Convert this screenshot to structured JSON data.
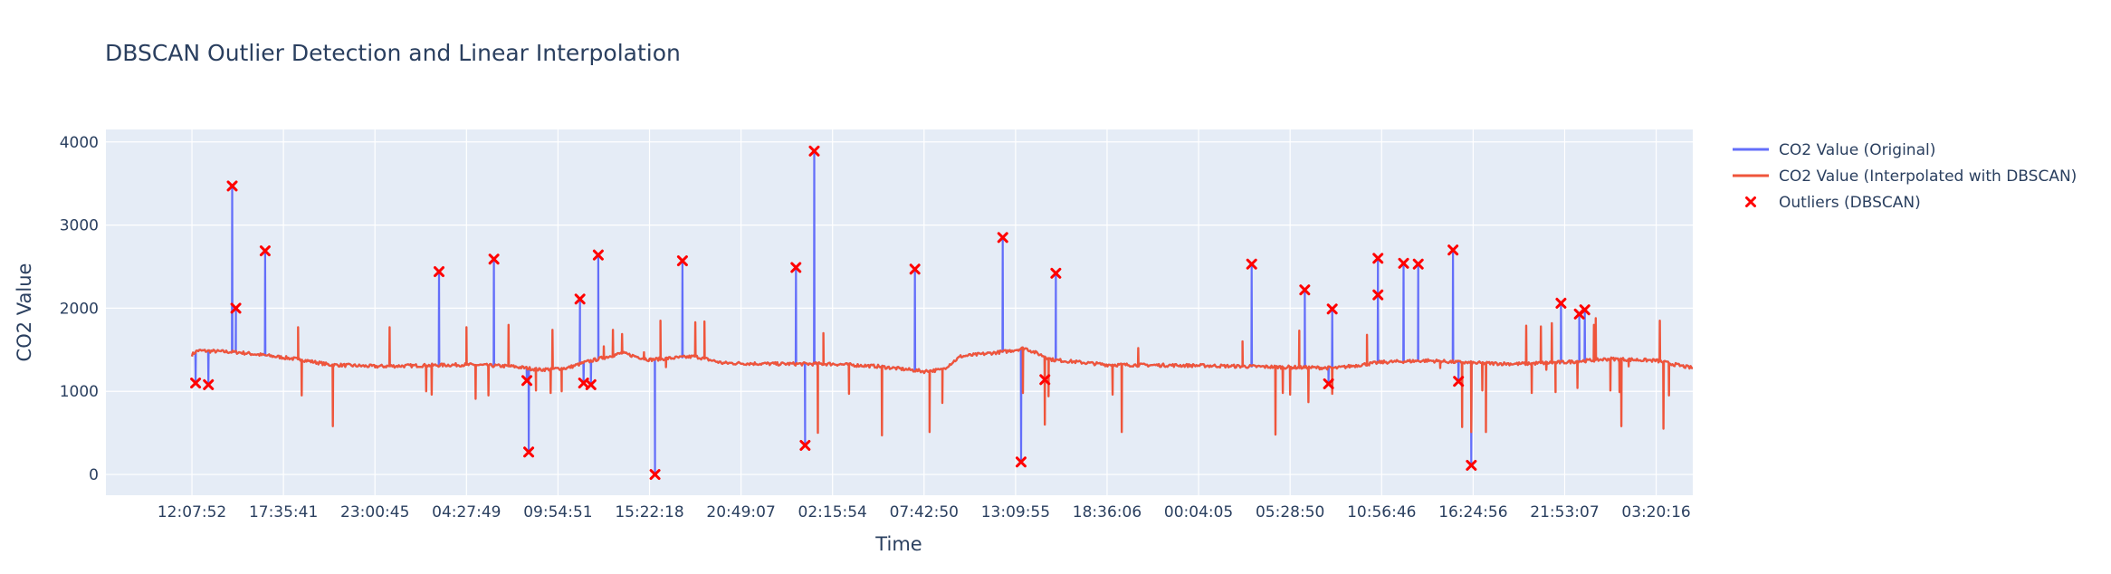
{
  "chart_data": {
    "type": "line",
    "title": "DBSCAN Outlier Detection and Linear Interpolation",
    "xlabel": "Time",
    "ylabel": "CO2 Value",
    "ylim": [
      -250,
      4150
    ],
    "yticks": [
      0,
      1000,
      2000,
      3000,
      4000
    ],
    "xlim": [
      -0.47,
      8.2
    ],
    "xticks": [
      {
        "pos": 0,
        "label": "12:07:52"
      },
      {
        "pos": 0.5,
        "label": "17:35:41"
      },
      {
        "pos": 1,
        "label": "23:00:45"
      },
      {
        "pos": 1.5,
        "label": "04:27:49"
      },
      {
        "pos": 2,
        "label": "09:54:51"
      },
      {
        "pos": 2.5,
        "label": "15:22:18"
      },
      {
        "pos": 3,
        "label": "20:49:07"
      },
      {
        "pos": 3.5,
        "label": "02:15:54"
      },
      {
        "pos": 4,
        "label": "07:42:50"
      },
      {
        "pos": 4.5,
        "label": "13:09:55"
      },
      {
        "pos": 5,
        "label": "18:36:06"
      },
      {
        "pos": 5.5,
        "label": "00:04:05"
      },
      {
        "pos": 6,
        "label": "05:28:50"
      },
      {
        "pos": 6.5,
        "label": "10:56:46"
      },
      {
        "pos": 7,
        "label": "16:24:56"
      },
      {
        "pos": 7.5,
        "label": "21:53:07"
      },
      {
        "pos": 8,
        "label": "03:20:16"
      }
    ],
    "grid": true,
    "legend_position": "right",
    "colors": {
      "original": "#636efa",
      "interpolated": "#ef553b",
      "outliers": "#ff0000",
      "plot_bg": "#e5ecf6",
      "grid": "#ffffff"
    },
    "series": [
      {
        "name": "CO2 Value (Original)",
        "baseline": [
          [
            0,
            1440
          ],
          [
            0.03,
            1490
          ],
          [
            0.25,
            1470
          ],
          [
            0.45,
            1420
          ],
          [
            0.6,
            1380
          ],
          [
            0.75,
            1320
          ],
          [
            1.0,
            1300
          ],
          [
            1.25,
            1310
          ],
          [
            1.5,
            1320
          ],
          [
            1.75,
            1300
          ],
          [
            1.9,
            1260
          ],
          [
            2.05,
            1280
          ],
          [
            2.15,
            1350
          ],
          [
            2.35,
            1460
          ],
          [
            2.5,
            1380
          ],
          [
            2.75,
            1420
          ],
          [
            2.9,
            1340
          ],
          [
            3.2,
            1330
          ],
          [
            3.5,
            1330
          ],
          [
            3.75,
            1300
          ],
          [
            4.0,
            1240
          ],
          [
            4.1,
            1260
          ],
          [
            4.2,
            1420
          ],
          [
            4.45,
            1480
          ],
          [
            4.55,
            1520
          ],
          [
            4.7,
            1380
          ],
          [
            5.0,
            1320
          ],
          [
            5.5,
            1310
          ],
          [
            5.75,
            1300
          ],
          [
            6.0,
            1290
          ],
          [
            6.25,
            1280
          ],
          [
            6.5,
            1350
          ],
          [
            6.75,
            1370
          ],
          [
            7.0,
            1340
          ],
          [
            7.25,
            1330
          ],
          [
            7.5,
            1350
          ],
          [
            7.75,
            1390
          ],
          [
            8.0,
            1370
          ],
          [
            8.15,
            1300
          ],
          [
            8.2,
            1280
          ]
        ],
        "spikes": [
          [
            0.02,
            1100
          ],
          [
            0.09,
            1080
          ],
          [
            0.22,
            3470
          ],
          [
            0.24,
            2000
          ],
          [
            0.4,
            2690
          ],
          [
            1.35,
            2440
          ],
          [
            1.65,
            2590
          ],
          [
            1.84,
            270
          ],
          [
            1.83,
            1130
          ],
          [
            2.12,
            2110
          ],
          [
            2.14,
            1100
          ],
          [
            2.18,
            1080
          ],
          [
            2.22,
            2640
          ],
          [
            2.53,
            0
          ],
          [
            2.68,
            2570
          ],
          [
            3.3,
            2490
          ],
          [
            3.35,
            350
          ],
          [
            3.4,
            3890
          ],
          [
            3.95,
            2470
          ],
          [
            4.43,
            2850
          ],
          [
            4.53,
            150
          ],
          [
            4.66,
            1140
          ],
          [
            4.72,
            2420
          ],
          [
            5.79,
            2530
          ],
          [
            6.08,
            2220
          ],
          [
            6.21,
            1090
          ],
          [
            6.23,
            1990
          ],
          [
            6.48,
            2600
          ],
          [
            6.48,
            2160
          ],
          [
            6.62,
            2540
          ],
          [
            6.7,
            2530
          ],
          [
            6.89,
            2700
          ],
          [
            6.92,
            1120
          ],
          [
            6.99,
            110
          ],
          [
            7.48,
            2060
          ],
          [
            7.58,
            1930
          ],
          [
            7.61,
            1980
          ]
        ]
      },
      {
        "name": "CO2 Value (Interpolated with DBSCAN)",
        "spikes": [
          [
            0.58,
            1770
          ],
          [
            0.6,
            950
          ],
          [
            0.77,
            580
          ],
          [
            1.08,
            1770
          ],
          [
            1.28,
            1000
          ],
          [
            1.31,
            960
          ],
          [
            1.5,
            1770
          ],
          [
            1.55,
            910
          ],
          [
            1.62,
            950
          ],
          [
            1.73,
            1800
          ],
          [
            1.88,
            1010
          ],
          [
            1.96,
            980
          ],
          [
            1.97,
            1740
          ],
          [
            2.02,
            1000
          ],
          [
            2.25,
            1540
          ],
          [
            2.3,
            1740
          ],
          [
            2.35,
            1690
          ],
          [
            2.47,
            1470
          ],
          [
            2.56,
            1850
          ],
          [
            2.59,
            1290
          ],
          [
            2.75,
            1830
          ],
          [
            2.8,
            1840
          ],
          [
            3.42,
            500
          ],
          [
            3.45,
            1700
          ],
          [
            3.59,
            970
          ],
          [
            3.77,
            470
          ],
          [
            4.03,
            510
          ],
          [
            4.1,
            860
          ],
          [
            4.54,
            980
          ],
          [
            4.66,
            600
          ],
          [
            4.68,
            940
          ],
          [
            5.03,
            960
          ],
          [
            5.08,
            510
          ],
          [
            5.17,
            1520
          ],
          [
            5.74,
            1600
          ],
          [
            5.92,
            480
          ],
          [
            5.96,
            980
          ],
          [
            6.0,
            960
          ],
          [
            6.05,
            1730
          ],
          [
            6.1,
            870
          ],
          [
            6.23,
            970
          ],
          [
            6.42,
            1680
          ],
          [
            6.82,
            1280
          ],
          [
            6.94,
            570
          ],
          [
            6.99,
            510
          ],
          [
            7.05,
            1010
          ],
          [
            7.07,
            510
          ],
          [
            7.29,
            1790
          ],
          [
            7.32,
            980
          ],
          [
            7.37,
            1780
          ],
          [
            7.4,
            1260
          ],
          [
            7.43,
            1820
          ],
          [
            7.45,
            990
          ],
          [
            7.57,
            1040
          ],
          [
            7.66,
            1800
          ],
          [
            7.67,
            1880
          ],
          [
            7.75,
            1010
          ],
          [
            7.8,
            990
          ],
          [
            7.81,
            580
          ],
          [
            7.85,
            1300
          ],
          [
            8.02,
            1850
          ],
          [
            8.04,
            550
          ],
          [
            8.07,
            950
          ]
        ]
      },
      {
        "name": "Outliers (DBSCAN)",
        "points": [
          [
            0.02,
            1100
          ],
          [
            0.09,
            1080
          ],
          [
            0.22,
            3470
          ],
          [
            0.24,
            2000
          ],
          [
            0.4,
            2690
          ],
          [
            1.35,
            2440
          ],
          [
            1.65,
            2590
          ],
          [
            1.84,
            270
          ],
          [
            1.83,
            1130
          ],
          [
            2.12,
            2110
          ],
          [
            2.14,
            1100
          ],
          [
            2.18,
            1080
          ],
          [
            2.22,
            2640
          ],
          [
            2.53,
            0
          ],
          [
            2.68,
            2570
          ],
          [
            3.3,
            2490
          ],
          [
            3.35,
            350
          ],
          [
            3.4,
            3890
          ],
          [
            3.95,
            2470
          ],
          [
            4.43,
            2850
          ],
          [
            4.53,
            150
          ],
          [
            4.66,
            1140
          ],
          [
            4.72,
            2420
          ],
          [
            5.79,
            2530
          ],
          [
            6.08,
            2220
          ],
          [
            6.21,
            1090
          ],
          [
            6.23,
            1990
          ],
          [
            6.48,
            2600
          ],
          [
            6.48,
            2160
          ],
          [
            6.62,
            2540
          ],
          [
            6.7,
            2530
          ],
          [
            6.89,
            2700
          ],
          [
            6.92,
            1120
          ],
          [
            6.99,
            110
          ],
          [
            7.48,
            2060
          ],
          [
            7.58,
            1930
          ],
          [
            7.61,
            1980
          ]
        ]
      }
    ]
  }
}
